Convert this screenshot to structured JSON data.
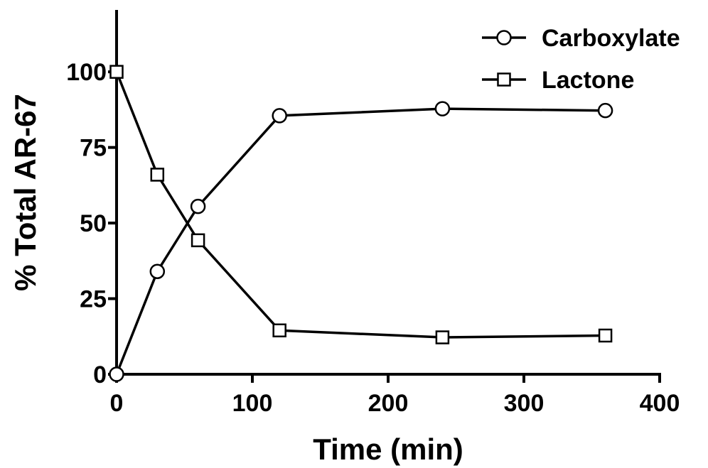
{
  "chart_data": {
    "type": "line",
    "xlabel": "Time (min)",
    "ylabel": "% Total AR-67",
    "xlim": [
      0,
      400
    ],
    "ylim": [
      0,
      120
    ],
    "x_ticks": [
      0,
      100,
      200,
      300,
      400
    ],
    "x_tick_labels": [
      "0",
      "100",
      "200",
      "300",
      "400"
    ],
    "y_ticks": [
      0,
      25,
      50,
      75,
      100
    ],
    "y_tick_labels": [
      "0",
      "25",
      "50",
      "75",
      "100"
    ],
    "grid": false,
    "legend_position": "top-right",
    "line_color": "#000000",
    "marker_fill": "#ffffff",
    "series": [
      {
        "name": "Carboxylate",
        "marker": "circle",
        "x": [
          0,
          30,
          60,
          120,
          240,
          360
        ],
        "y": [
          0,
          34,
          55.5,
          85.5,
          87.8,
          87.2
        ]
      },
      {
        "name": "Lactone",
        "marker": "square",
        "x": [
          0,
          30,
          60,
          120,
          240,
          360
        ],
        "y": [
          100,
          66,
          44.3,
          14.5,
          12.2,
          12.8
        ]
      }
    ]
  }
}
